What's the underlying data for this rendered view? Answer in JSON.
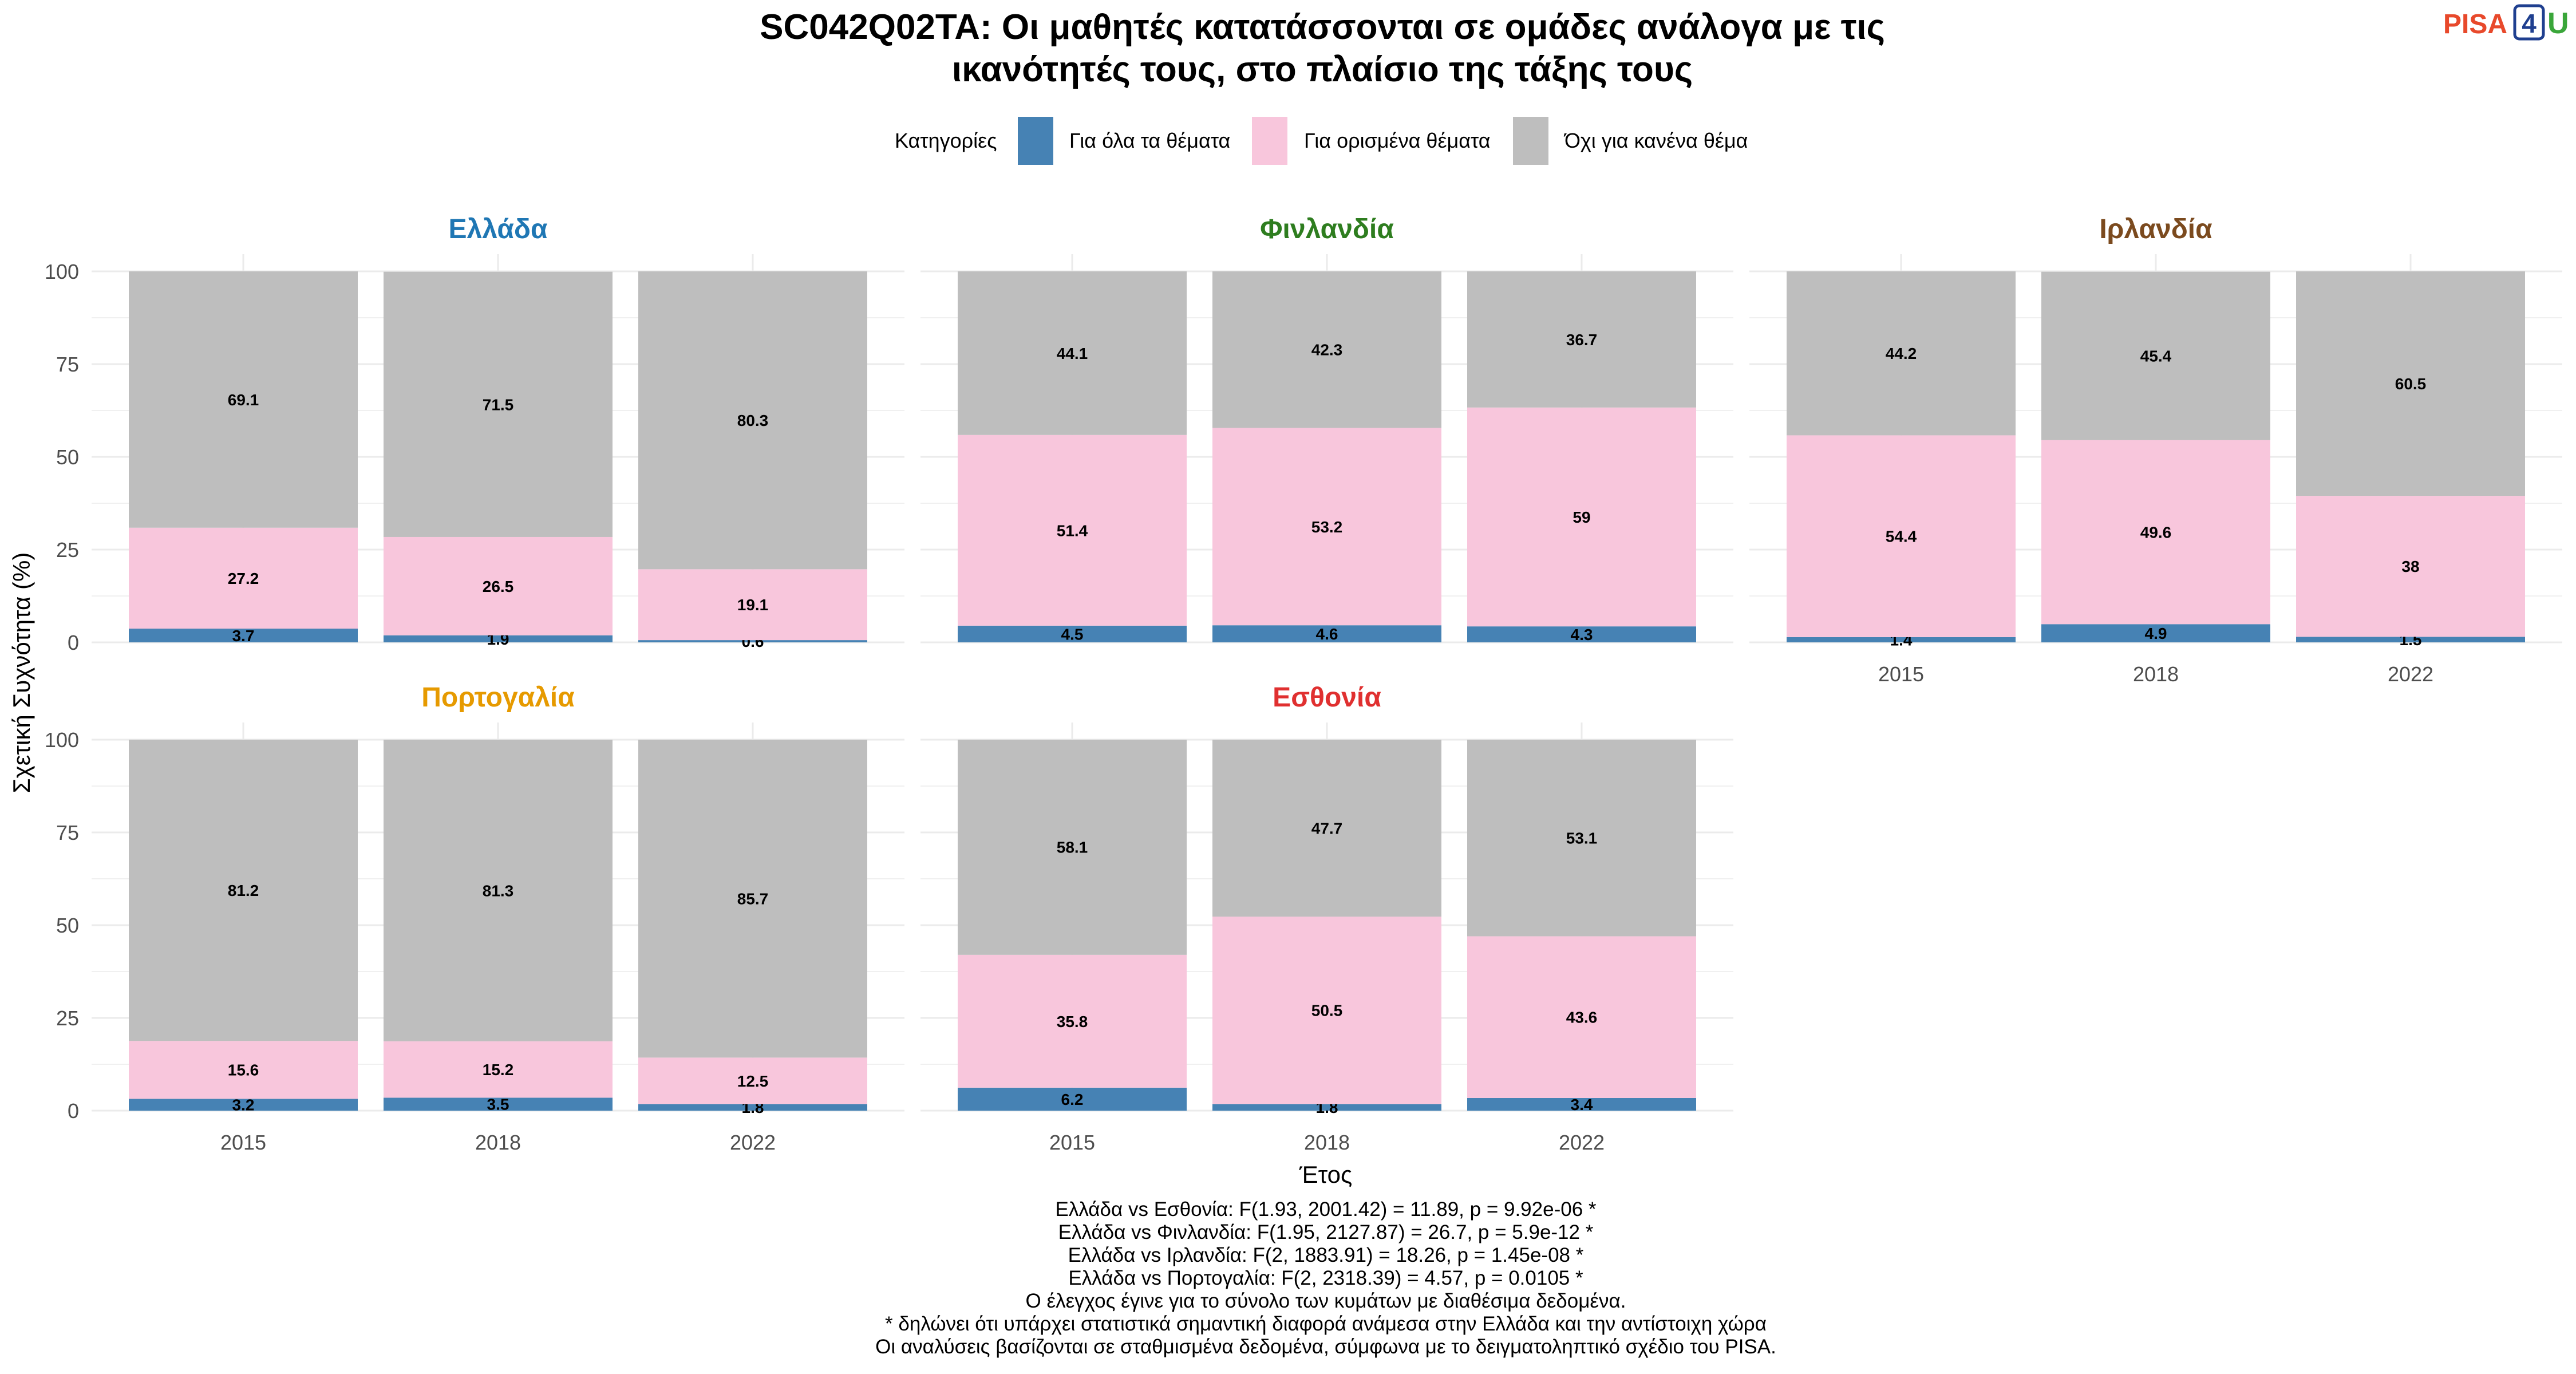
{
  "logo": {
    "text_left": "PISA",
    "text_digit": "4",
    "text_right": "U"
  },
  "title_line1": "SC042Q02TA: Οι μαθητές κατατάσσονται σε ομάδες ανάλογα με τις",
  "title_line2": "ικανότητές τους, στο πλαίσιο της τάξης τους",
  "legend": {
    "title": "Κατηγορίες",
    "items": [
      {
        "label": "Για όλα τα θέματα",
        "color": "#4682b4"
      },
      {
        "label": "Για ορισμένα θέματα",
        "color": "#f8c6dc"
      },
      {
        "label": "Όχι για κανένα θέμα",
        "color": "#bebebe"
      }
    ]
  },
  "axis": {
    "xlabel": "Έτος",
    "ylabel": "Σχετική Συχνότητα (%)"
  },
  "chart_data": {
    "type": "bar",
    "stacked": true,
    "ylim": [
      0,
      100
    ],
    "yticks": [
      0,
      25,
      50,
      75,
      100
    ],
    "grid": true,
    "legend_position": "top",
    "categories": [
      "2015",
      "2018",
      "2022"
    ],
    "series_names": [
      "Για όλα τα θέματα",
      "Για ορισμένα θέματα",
      "Όχι για κανένα θέμα"
    ],
    "panels": [
      {
        "country": "Ελλάδα",
        "color": "#1f77b4",
        "values": [
          [
            3.7,
            27.2,
            69.1
          ],
          [
            1.9,
            26.5,
            71.5
          ],
          [
            0.6,
            19.1,
            80.3
          ]
        ]
      },
      {
        "country": "Φινλανδία",
        "color": "#2e7d1f",
        "values": [
          [
            4.5,
            51.4,
            44.1
          ],
          [
            4.6,
            53.2,
            42.3
          ],
          [
            4.3,
            59,
            36.7
          ]
        ]
      },
      {
        "country": "Ιρλανδία",
        "color": "#7b4a1e",
        "values": [
          [
            1.4,
            54.4,
            44.2
          ],
          [
            4.9,
            49.6,
            45.4
          ],
          [
            1.5,
            38,
            60.5
          ]
        ]
      },
      {
        "country": "Πορτογαλία",
        "color": "#e69a00",
        "values": [
          [
            3.2,
            15.6,
            81.2
          ],
          [
            3.5,
            15.2,
            81.3
          ],
          [
            1.8,
            12.5,
            85.7
          ]
        ]
      },
      {
        "country": "Εσθονία",
        "color": "#e03030",
        "values": [
          [
            6.2,
            35.8,
            58.1
          ],
          [
            1.8,
            50.5,
            47.7
          ],
          [
            3.4,
            43.6,
            53.1
          ]
        ]
      }
    ]
  },
  "notes": [
    "Ελλάδα vs Εσθονία: F(1.93, 2001.42) = 11.89, p = 9.92e-06 *",
    "Ελλάδα vs Φινλανδία: F(1.95, 2127.87) = 26.7, p = 5.9e-12 *",
    "Ελλάδα vs Ιρλανδία: F(2, 1883.91) = 18.26, p = 1.45e-08 *",
    "Ελλάδα vs Πορτογαλία: F(2, 2318.39) = 4.57, p = 0.0105 *",
    "Ο έλεγχος έγινε για το σύνολο των κυμάτων με διαθέσιμα δεδομένα.",
    "* δηλώνει ότι υπάρχει στατιστικά σημαντική διαφορά ανάμεσα στην Ελλάδα και την αντίστοιχη χώρα",
    "Οι αναλύσεις βασίζονται σε σταθμισμένα δεδομένα, σύμφωνα με το δειγματοληπτικό σχέδιο του PISA."
  ]
}
